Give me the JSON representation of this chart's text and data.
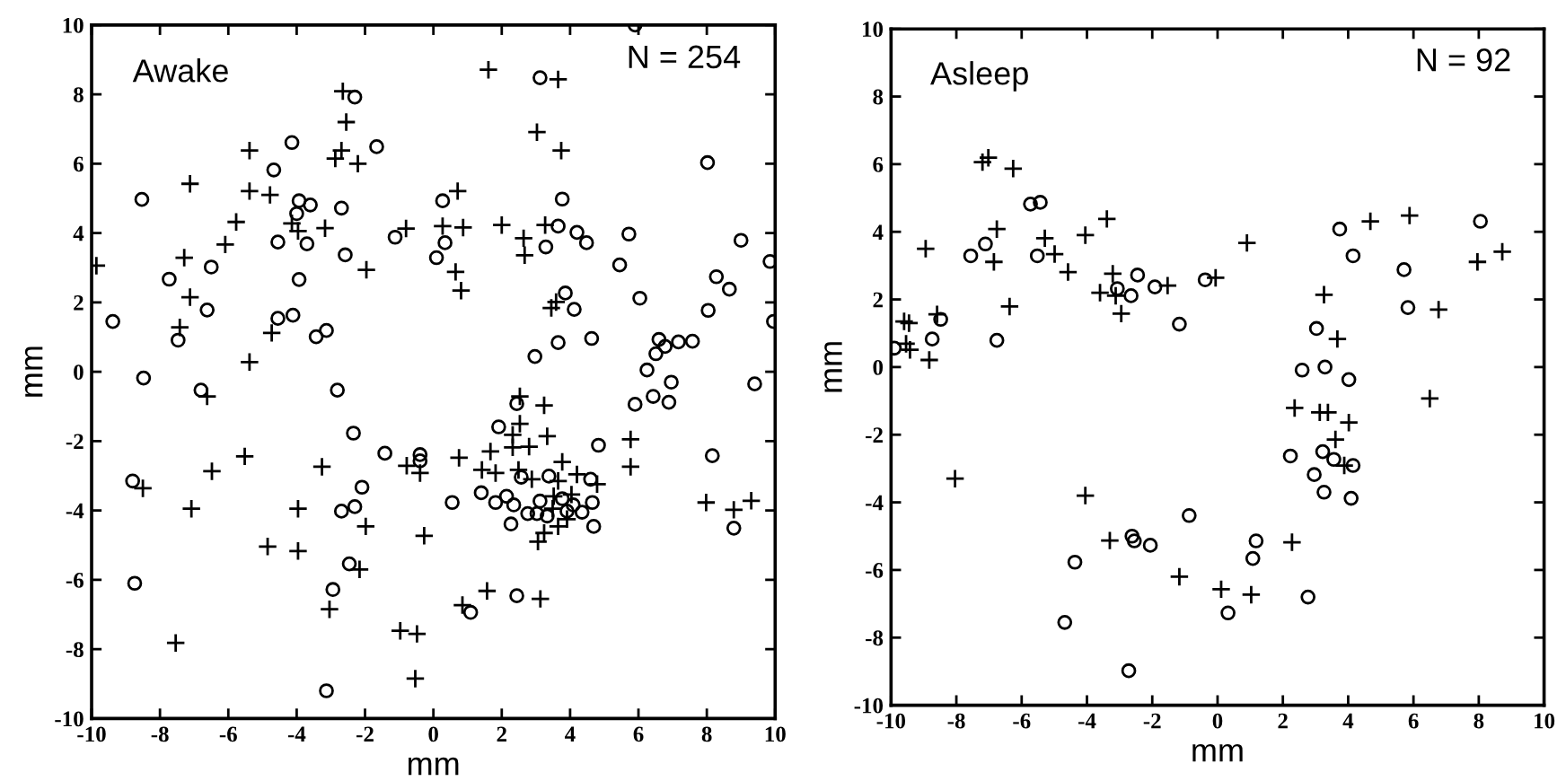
{
  "chart_data": [
    {
      "type": "scatter",
      "title": "Awake",
      "xlabel": "mm",
      "ylabel": "mm",
      "annotations": [
        "N = 254"
      ],
      "xlim": [
        -10,
        10
      ],
      "ylim": [
        -10,
        10
      ],
      "xticks": [
        -10,
        -8,
        -6,
        -4,
        -2,
        0,
        2,
        4,
        6,
        8,
        10
      ],
      "yticks": [
        -10,
        -8,
        -6,
        -4,
        -2,
        0,
        2,
        4,
        6,
        8,
        10
      ],
      "series": [
        {
          "marker": "circle",
          "color": "#000000",
          "x": [
            -8.53,
            -9.38,
            -7.73,
            -7.47,
            -6.5,
            -6.62,
            -4.67,
            -4.14,
            -4.55,
            -3.93,
            -4.0,
            -3.7,
            -3.6,
            -3.93,
            -4.55,
            -4.11,
            -3.43,
            -3.13,
            -2.69,
            -2.58,
            -2.3,
            -1.66,
            -1.12,
            5.9,
            3.12,
            8.02,
            0.27,
            3.77,
            0.34,
            0.09,
            3.65,
            3.29,
            4.2,
            4.48,
            5.72,
            5.45,
            6.04,
            9.0,
            9.85,
            8.28,
            8.66,
            8.04,
            9.95,
            3.86,
            4.12,
            3.65,
            2.97,
            4.63,
            6.6,
            6.51,
            6.78,
            7.17,
            7.58,
            6.25,
            6.96,
            9.4,
            -8.48,
            -6.8,
            -2.81,
            -8.8,
            -8.74,
            -2.34,
            -2.09,
            -2.69,
            -2.3,
            -2.46,
            -2.94,
            -3.13,
            -1.42,
            -0.39,
            -0.39,
            6.43,
            5.9,
            6.89,
            2.44,
            1.91,
            4.83,
            8.16,
            2.57,
            3.38,
            4.6,
            1.4,
            0.55,
            1.82,
            2.14,
            2.35,
            2.76,
            3.03,
            3.12,
            3.33,
            3.77,
            3.91,
            4.09,
            4.35,
            4.65,
            4.69,
            2.27,
            8.79,
            2.44,
            1.09
          ],
          "values": [
            4.97,
            1.45,
            2.67,
            0.91,
            3.02,
            1.78,
            5.82,
            6.61,
            3.74,
            4.93,
            4.56,
            3.69,
            4.81,
            2.66,
            1.54,
            1.63,
            1.01,
            1.19,
            4.72,
            3.37,
            7.92,
            6.49,
            3.88,
            10.0,
            8.48,
            6.03,
            4.93,
            4.98,
            3.72,
            3.29,
            4.2,
            3.6,
            4.02,
            3.72,
            3.97,
            3.08,
            2.12,
            3.79,
            3.18,
            2.74,
            2.38,
            1.77,
            1.45,
            2.27,
            1.8,
            0.84,
            0.44,
            0.96,
            0.93,
            0.52,
            0.73,
            0.86,
            0.88,
            0.05,
            -0.3,
            -0.35,
            -0.18,
            -0.53,
            -0.53,
            -3.15,
            -6.1,
            -1.77,
            -3.33,
            -4.02,
            -3.89,
            -5.54,
            -6.28,
            -9.2,
            -2.35,
            -2.39,
            -2.57,
            -0.71,
            -0.94,
            -0.88,
            -0.92,
            -1.59,
            -2.12,
            -2.42,
            -3.04,
            -3.01,
            -3.1,
            -3.49,
            -3.77,
            -3.77,
            -3.59,
            -3.84,
            -4.09,
            -4.09,
            -3.73,
            -4.16,
            -3.66,
            -4.02,
            -3.84,
            -4.05,
            -3.77,
            -4.46,
            -4.39,
            -4.51,
            -6.46,
            -6.94
          ]
        },
        {
          "marker": "cross",
          "color": "#000000",
          "x": [
            -9.86,
            -7.12,
            -7.29,
            -7.12,
            -7.42,
            -6.09,
            -5.77,
            -5.38,
            -5.38,
            -4.78,
            -4.73,
            -5.38,
            -4.14,
            -3.96,
            -3.17,
            -2.65,
            -2.55,
            -2.87,
            -2.69,
            -2.21,
            -1.96,
            -0.8,
            1.61,
            3.65,
            3.03,
            3.74,
            0.71,
            0.27,
            0.87,
            2.0,
            2.64,
            2.67,
            3.27,
            0.65,
            0.81,
            3.45,
            3.59,
            -8.5,
            -6.62,
            -6.48,
            -5.52,
            -7.08,
            -7.54,
            -4.85,
            -3.96,
            -3.96,
            -3.26,
            -3.04,
            -2.16,
            -1.98,
            -0.78,
            -0.39,
            -0.97,
            -0.48,
            -0.53,
            -0.27,
            2.53,
            3.24,
            2.53,
            2.32,
            2.32,
            2.8,
            3.33,
            1.67,
            0.75,
            1.42,
            1.82,
            2.49,
            2.88,
            3.77,
            3.65,
            4.2,
            4.79,
            3.52,
            4.04,
            3.49,
            3.91,
            3.65,
            3.24,
            3.06,
            5.77,
            5.77,
            7.98,
            8.79,
            9.3,
            1.57,
            0.85,
            3.13
          ],
          "values": [
            3.06,
            5.42,
            3.29,
            2.15,
            1.28,
            3.67,
            4.32,
            6.38,
            5.21,
            5.1,
            1.12,
            0.28,
            4.28,
            4.06,
            4.14,
            8.09,
            7.2,
            6.15,
            6.38,
            6.0,
            2.94,
            4.13,
            8.71,
            8.43,
            6.91,
            6.38,
            5.21,
            4.2,
            4.16,
            4.23,
            3.85,
            3.36,
            4.23,
            2.88,
            2.34,
            1.84,
            2.01,
            -3.36,
            -0.71,
            -2.87,
            -2.44,
            -3.95,
            -7.82,
            -5.04,
            -5.17,
            -3.95,
            -2.74,
            -6.85,
            -5.7,
            -4.46,
            -2.71,
            -2.92,
            -7.47,
            -7.56,
            -8.85,
            -4.73,
            -0.71,
            -0.97,
            -1.5,
            -1.82,
            -2.18,
            -2.16,
            -1.86,
            -2.3,
            -2.48,
            -2.83,
            -2.92,
            -2.83,
            -3.1,
            -2.6,
            -3.15,
            -2.96,
            -3.24,
            -3.59,
            -3.54,
            -3.95,
            -4.25,
            -4.46,
            -4.65,
            -4.9,
            -2.74,
            -1.95,
            -3.77,
            -3.98,
            -3.72,
            -6.32,
            -6.73,
            -6.55
          ]
        }
      ]
    },
    {
      "type": "scatter",
      "title": "Asleep",
      "xlabel": "mm",
      "ylabel": "mm",
      "annotations": [
        "N = 92"
      ],
      "xlim": [
        -10,
        10
      ],
      "ylim": [
        -10,
        10
      ],
      "xticks": [
        -10,
        -8,
        -6,
        -4,
        -2,
        0,
        2,
        4,
        6,
        8,
        10
      ],
      "yticks": [
        -10,
        -8,
        -6,
        -4,
        -2,
        0,
        2,
        4,
        6,
        8,
        10
      ],
      "series": [
        {
          "marker": "circle",
          "color": "#000000",
          "x": [
            -9.9,
            -8.74,
            -8.48,
            -7.56,
            -7.11,
            -6.76,
            -5.73,
            -5.43,
            -5.52,
            -3.07,
            -2.65,
            -2.45,
            -1.92,
            -1.17,
            -0.38,
            3.03,
            3.74,
            4.15,
            5.71,
            5.83,
            8.05,
            2.59,
            3.29,
            4.02,
            2.23,
            3.22,
            3.56,
            4.15,
            2.96,
            3.26,
            4.09,
            -0.87,
            -2.62,
            -2.55,
            -2.06,
            1.18,
            1.08,
            -4.37,
            -4.68,
            0.32,
            2.77,
            -2.72
          ],
          "values": [
            0.56,
            0.83,
            1.41,
            3.29,
            3.64,
            0.79,
            4.82,
            4.87,
            3.29,
            2.32,
            2.11,
            2.72,
            2.37,
            1.27,
            2.58,
            1.14,
            4.08,
            3.29,
            2.88,
            1.76,
            4.31,
            -0.09,
            0.0,
            -0.37,
            -2.63,
            -2.5,
            -2.73,
            -2.91,
            -3.18,
            -3.7,
            -3.88,
            -4.39,
            -5.0,
            -5.14,
            -5.27,
            -5.14,
            -5.66,
            -5.77,
            -7.55,
            -7.27,
            -6.8,
            -8.98
          ]
        },
        {
          "marker": "cross",
          "color": "#000000",
          "x": [
            -9.6,
            -9.45,
            -9.54,
            -9.42,
            -8.83,
            -8.94,
            -8.59,
            -7.2,
            -7.02,
            -6.26,
            -6.76,
            -6.85,
            -6.37,
            -5.29,
            -4.99,
            -4.58,
            -4.05,
            -3.39,
            -3.21,
            -3.6,
            -3.12,
            -2.95,
            -1.53,
            -0.06,
            0.9,
            3.26,
            3.67,
            4.68,
            5.88,
            6.77,
            7.96,
            8.72,
            -8.04,
            -4.05,
            -3.3,
            -1.17,
            0.11,
            1.03,
            2.28,
            2.36,
            3.13,
            3.38,
            4.02,
            3.61,
            3.88,
            6.5
          ],
          "values": [
            1.35,
            1.3,
            0.69,
            0.51,
            0.21,
            3.5,
            1.56,
            6.06,
            6.19,
            5.87,
            4.08,
            3.11,
            1.79,
            3.81,
            3.34,
            2.81,
            3.9,
            4.38,
            2.76,
            2.2,
            2.11,
            1.58,
            2.41,
            2.64,
            3.67,
            2.14,
            0.83,
            4.31,
            4.48,
            1.7,
            3.11,
            3.41,
            -3.3,
            -3.8,
            -5.13,
            -6.2,
            -6.57,
            -6.73,
            -5.18,
            -1.21,
            -1.34,
            -1.34,
            -1.64,
            -2.14,
            -2.91,
            -0.93
          ]
        }
      ]
    }
  ]
}
